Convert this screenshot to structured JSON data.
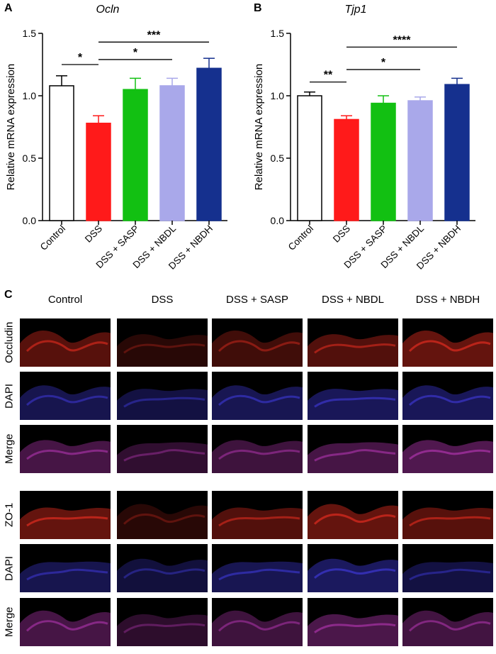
{
  "panels": {
    "a_letter": "A",
    "b_letter": "B",
    "c_letter": "C"
  },
  "chart_data": [
    {
      "type": "bar",
      "title": "Ocln",
      "xlabel": "",
      "ylabel": "Relative mRNA expression",
      "ylim": [
        0,
        1.5
      ],
      "yticks": [
        "0.0",
        "0.5",
        "1.0",
        "1.5"
      ],
      "categories": [
        "Control",
        "DSS",
        "DSS + SASP",
        "DSS + NBDL",
        "DSS + NBDH"
      ],
      "values": [
        1.08,
        0.78,
        1.05,
        1.08,
        1.22
      ],
      "errors": [
        0.08,
        0.06,
        0.09,
        0.06,
        0.08
      ],
      "colors": [
        "#ffffff",
        "#ff1a1a",
        "#12c012",
        "#a9a8ea",
        "#15308e"
      ],
      "significance": [
        {
          "from": 0,
          "to": 1,
          "label": "*",
          "y": 1.25
        },
        {
          "from": 1,
          "to": 3,
          "label": "*",
          "y": 1.29
        },
        {
          "from": 1,
          "to": 4,
          "label": "***",
          "y": 1.43
        }
      ]
    },
    {
      "type": "bar",
      "title": "Tjp1",
      "xlabel": "",
      "ylabel": "Relative mRNA expression",
      "ylim": [
        0,
        1.5
      ],
      "yticks": [
        "0.0",
        "0.5",
        "1.0",
        "1.5"
      ],
      "categories": [
        "Control",
        "DSS",
        "DSS + SASP",
        "DSS + NBDL",
        "DSS + NBDH"
      ],
      "values": [
        1.0,
        0.81,
        0.94,
        0.96,
        1.09
      ],
      "errors": [
        0.03,
        0.03,
        0.06,
        0.03,
        0.05
      ],
      "colors": [
        "#ffffff",
        "#ff1a1a",
        "#12c012",
        "#a9a8ea",
        "#15308e"
      ],
      "significance": [
        {
          "from": 0,
          "to": 1,
          "label": "**",
          "y": 1.11
        },
        {
          "from": 1,
          "to": 3,
          "label": "*",
          "y": 1.21
        },
        {
          "from": 1,
          "to": 4,
          "label": "****",
          "y": 1.39
        }
      ]
    }
  ],
  "micrographs": {
    "columns": [
      "Control",
      "DSS",
      "DSS + SASP",
      "DSS + NBDL",
      "DSS + NBDH"
    ],
    "rows": [
      "Occludin",
      "DAPI",
      "Merge",
      "ZO-1",
      "DAPI",
      "Merge"
    ],
    "row_colors": [
      "#d42a1e",
      "#3a35c8",
      "#a0309e",
      "#d42a1e",
      "#3a35c8",
      "#a0309e"
    ],
    "intensity": [
      [
        0.75,
        0.35,
        0.55,
        0.7,
        0.85
      ],
      [
        0.7,
        0.6,
        0.75,
        0.8,
        0.8
      ],
      [
        0.8,
        0.55,
        0.7,
        0.8,
        0.9
      ],
      [
        0.85,
        0.35,
        0.7,
        0.85,
        0.75
      ],
      [
        0.7,
        0.55,
        0.75,
        0.85,
        0.6
      ],
      [
        0.8,
        0.5,
        0.7,
        0.85,
        0.75
      ]
    ]
  }
}
